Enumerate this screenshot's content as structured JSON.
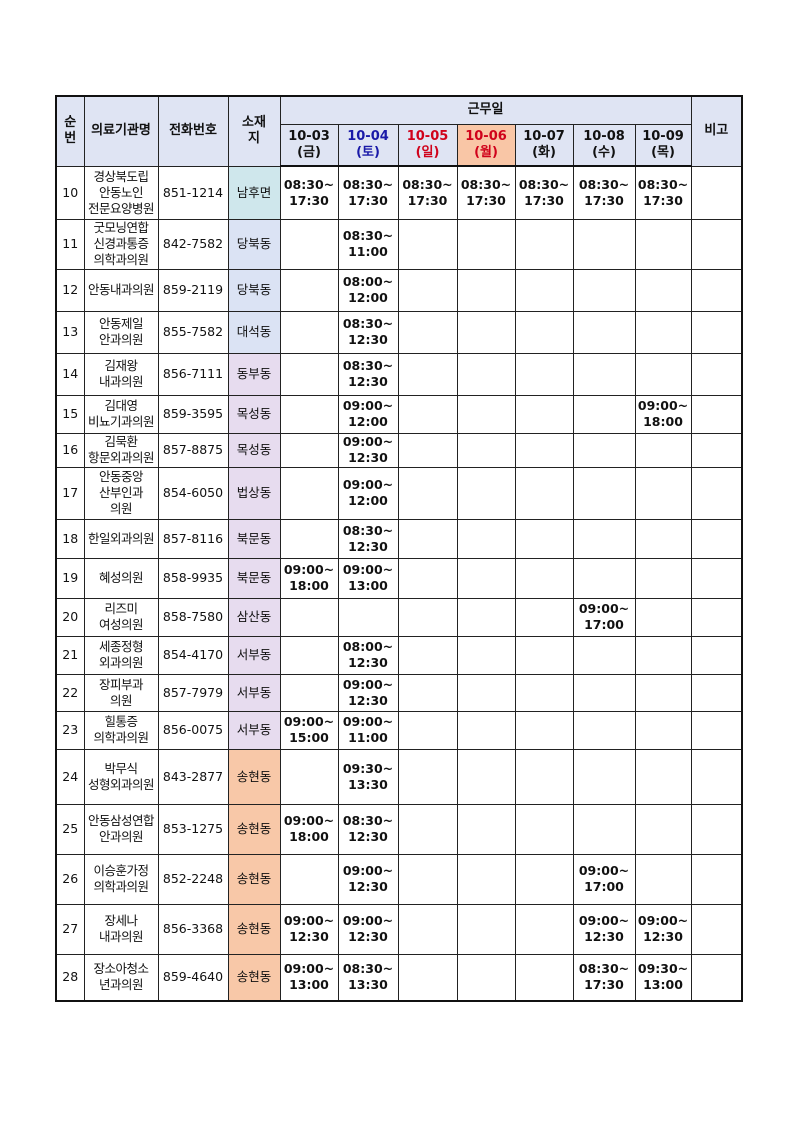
{
  "header": {
    "no": "순\n번",
    "institution": "의료기관명",
    "phone": "전화번호",
    "location": "소재\n지",
    "workdays": "근무일",
    "remarks": "비고",
    "dates": [
      {
        "label": "10-03\n(금)",
        "type": "normal"
      },
      {
        "label": "10-04\n(토)",
        "type": "sat"
      },
      {
        "label": "10-05\n(일)",
        "type": "sun"
      },
      {
        "label": "10-06\n(월)",
        "type": "hol"
      },
      {
        "label": "10-07\n(화)",
        "type": "normal"
      },
      {
        "label": "10-08\n(수)",
        "type": "normal"
      },
      {
        "label": "10-09\n(목)",
        "type": "normal"
      }
    ]
  },
  "location_colors": {
    "남후면": "#cfe7ec",
    "당북동": "#dbe3f4",
    "대석동": "#dbe3f4",
    "동부동": "#e7dcef",
    "목성동": "#e7dcef",
    "법상동": "#e7dcef",
    "북문동": "#e7dcef",
    "삼산동": "#e7dcef",
    "서부동": "#e7dcef",
    "송현동": "#f8c8a8"
  },
  "rows": [
    {
      "no": "10",
      "name": "경상북도립\n안동노인\n전문요양병원",
      "phone": "851-1214",
      "location": "남후면",
      "times": [
        "08:30~\n17:30",
        "08:30~\n17:30",
        "08:30~\n17:30",
        "08:30~\n17:30",
        "08:30~\n17:30",
        "08:30~\n17:30",
        "08:30~\n17:30"
      ],
      "remarks": ""
    },
    {
      "no": "11",
      "name": "굿모닝연합\n신경과통증\n의학과의원",
      "phone": "842-7582",
      "location": "당북동",
      "times": [
        "",
        "08:30~\n11:00",
        "",
        "",
        "",
        "",
        ""
      ],
      "remarks": ""
    },
    {
      "no": "12",
      "name": "안동내과의원",
      "phone": "859-2119",
      "location": "당북동",
      "times": [
        "",
        "08:00~\n12:00",
        "",
        "",
        "",
        "",
        ""
      ],
      "remarks": ""
    },
    {
      "no": "13",
      "name": "안동제일\n안과의원",
      "phone": "855-7582",
      "location": "대석동",
      "times": [
        "",
        "08:30~\n12:30",
        "",
        "",
        "",
        "",
        ""
      ],
      "remarks": ""
    },
    {
      "no": "14",
      "name": "김재왕\n내과의원",
      "phone": "856-7111",
      "location": "동부동",
      "times": [
        "",
        "08:30~\n12:30",
        "",
        "",
        "",
        "",
        ""
      ],
      "remarks": ""
    },
    {
      "no": "15",
      "name": "김대영\n비뇨기과의원",
      "phone": "859-3595",
      "location": "목성동",
      "times": [
        "",
        "09:00~\n12:00",
        "",
        "",
        "",
        "",
        "09:00~\n18:00"
      ],
      "remarks": ""
    },
    {
      "no": "16",
      "name": "김묵환\n항문외과의원",
      "phone": "857-8875",
      "location": "목성동",
      "times": [
        "",
        "09:00~\n12:30",
        "",
        "",
        "",
        "",
        ""
      ],
      "remarks": ""
    },
    {
      "no": "17",
      "name": "안동중앙\n산부인과\n의원",
      "phone": "854-6050",
      "location": "법상동",
      "times": [
        "",
        "09:00~\n12:00",
        "",
        "",
        "",
        "",
        ""
      ],
      "remarks": ""
    },
    {
      "no": "18",
      "name": "한일외과의원",
      "phone": "857-8116",
      "location": "북문동",
      "times": [
        "",
        "08:30~\n12:30",
        "",
        "",
        "",
        "",
        ""
      ],
      "remarks": ""
    },
    {
      "no": "19",
      "name": "혜성의원",
      "phone": "858-9935",
      "location": "북문동",
      "times": [
        "09:00~\n18:00",
        "09:00~\n13:00",
        "",
        "",
        "",
        "",
        ""
      ],
      "remarks": ""
    },
    {
      "no": "20",
      "name": "리즈미\n여성의원",
      "phone": "858-7580",
      "location": "삼산동",
      "times": [
        "",
        "",
        "",
        "",
        "",
        "09:00~\n17:00",
        ""
      ],
      "remarks": ""
    },
    {
      "no": "21",
      "name": "세종정형\n외과의원",
      "phone": "854-4170",
      "location": "서부동",
      "times": [
        "",
        "08:00~\n12:30",
        "",
        "",
        "",
        "",
        ""
      ],
      "remarks": ""
    },
    {
      "no": "22",
      "name": "장피부과\n의원",
      "phone": "857-7979",
      "location": "서부동",
      "times": [
        "",
        "09:00~\n12:30",
        "",
        "",
        "",
        "",
        ""
      ],
      "remarks": ""
    },
    {
      "no": "23",
      "name": "힐통증\n의학과의원",
      "phone": "856-0075",
      "location": "서부동",
      "times": [
        "09:00~\n15:00",
        "09:00~\n11:00",
        "",
        "",
        "",
        "",
        ""
      ],
      "remarks": ""
    },
    {
      "no": "24",
      "name": "박무식\n성형외과의원",
      "phone": "843-2877",
      "location": "송현동",
      "times": [
        "",
        "09:30~\n13:30",
        "",
        "",
        "",
        "",
        ""
      ],
      "remarks": ""
    },
    {
      "no": "25",
      "name": "안동삼성연합\n안과의원",
      "phone": "853-1275",
      "location": "송현동",
      "times": [
        "09:00~\n18:00",
        "08:30~\n12:30",
        "",
        "",
        "",
        "",
        ""
      ],
      "remarks": ""
    },
    {
      "no": "26",
      "name": "이승훈가정\n의학과의원",
      "phone": "852-2248",
      "location": "송현동",
      "times": [
        "",
        "09:00~\n12:30",
        "",
        "",
        "",
        "09:00~\n17:00",
        ""
      ],
      "remarks": ""
    },
    {
      "no": "27",
      "name": "장세나\n내과의원",
      "phone": "856-3368",
      "location": "송현동",
      "times": [
        "09:00~\n12:30",
        "09:00~\n12:30",
        "",
        "",
        "",
        "09:00~\n12:30",
        "09:00~\n12:30"
      ],
      "remarks": ""
    },
    {
      "no": "28",
      "name": "장소아청소\n년과의원",
      "phone": "859-4640",
      "location": "송현동",
      "times": [
        "09:00~\n13:00",
        "08:30~\n13:30",
        "",
        "",
        "",
        "08:30~\n17:30",
        "09:30~\n13:00"
      ],
      "remarks": ""
    }
  ]
}
